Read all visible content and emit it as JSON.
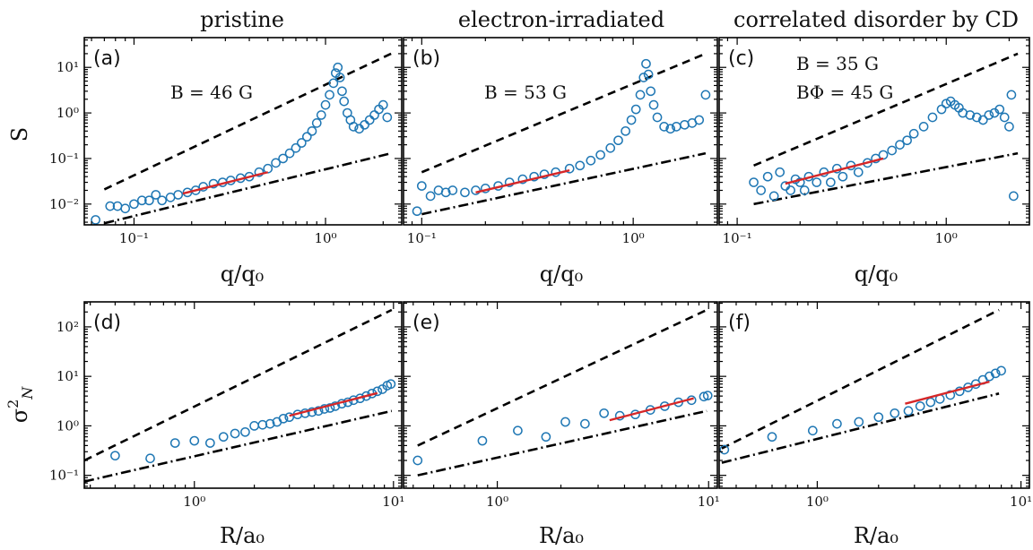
{
  "column_titles": [
    "pristine",
    "electron-irradiated",
    "correlated disorder by CD"
  ],
  "row_axis": {
    "top": {
      "ylabel": "S",
      "xlabel": "q/q₀"
    },
    "bottom": {
      "ylabel": "σ²_N",
      "xlabel": "R/a₀"
    }
  },
  "colors": {
    "data": "#1f77b4",
    "fit": "#d62728",
    "guide": "#000000"
  },
  "chart_data": [
    {
      "panel": "(a)",
      "type": "scatter",
      "annotation": [
        "B = 46 G"
      ],
      "xscale": "log",
      "yscale": "log",
      "xlim": [
        0.055,
        2.5
      ],
      "ylim": [
        0.0035,
        45
      ],
      "xticks": [
        0.1,
        1
      ],
      "xticklabels": [
        "10⁻¹",
        "10⁰"
      ],
      "yticks": [
        0.01,
        0.1,
        1,
        10
      ],
      "yticklabels": [
        "10⁻²",
        "10⁻¹",
        "10⁰",
        "10¹"
      ],
      "x": [
        0.063,
        0.075,
        0.082,
        0.09,
        0.1,
        0.11,
        0.12,
        0.13,
        0.14,
        0.155,
        0.17,
        0.19,
        0.21,
        0.23,
        0.26,
        0.29,
        0.32,
        0.36,
        0.4,
        0.45,
        0.5,
        0.55,
        0.6,
        0.65,
        0.7,
        0.75,
        0.8,
        0.85,
        0.9,
        0.95,
        1.0,
        1.05,
        1.1,
        1.13,
        1.16,
        1.19,
        1.22,
        1.25,
        1.3,
        1.35,
        1.4,
        1.5,
        1.6,
        1.7,
        1.8,
        1.9,
        2.0,
        2.1
      ],
      "y": [
        0.0045,
        0.009,
        0.009,
        0.008,
        0.01,
        0.012,
        0.012,
        0.016,
        0.012,
        0.014,
        0.016,
        0.018,
        0.02,
        0.024,
        0.028,
        0.03,
        0.033,
        0.037,
        0.04,
        0.05,
        0.06,
        0.08,
        0.1,
        0.13,
        0.17,
        0.22,
        0.3,
        0.4,
        0.6,
        0.9,
        1.5,
        2.5,
        4.5,
        7.5,
        10.0,
        6.0,
        3.0,
        1.8,
        1.0,
        0.7,
        0.5,
        0.45,
        0.55,
        0.7,
        0.9,
        1.2,
        1.5,
        0.8
      ],
      "fit": {
        "x": [
          0.18,
          0.5
        ],
        "y": [
          0.017,
          0.05
        ]
      },
      "guides": [
        {
          "style": "dashed",
          "x": [
            0.07,
            2.2
          ],
          "y": [
            0.021,
            20
          ]
        },
        {
          "style": "dashdot",
          "x": [
            0.07,
            2.2
          ],
          "y": [
            0.0038,
            0.13
          ]
        }
      ]
    },
    {
      "panel": "(b)",
      "type": "scatter",
      "annotation": [
        "B = 53 G"
      ],
      "xscale": "log",
      "yscale": "log",
      "xlim": [
        0.082,
        2.5
      ],
      "ylim": [
        0.0035,
        45
      ],
      "xticks": [
        0.1,
        1
      ],
      "xticklabels": [
        "10⁻¹",
        "10⁰"
      ],
      "x": [
        0.095,
        0.1,
        0.11,
        0.12,
        0.13,
        0.14,
        0.16,
        0.18,
        0.2,
        0.23,
        0.26,
        0.3,
        0.34,
        0.38,
        0.43,
        0.5,
        0.56,
        0.63,
        0.7,
        0.78,
        0.85,
        0.92,
        0.98,
        1.03,
        1.08,
        1.12,
        1.15,
        1.18,
        1.21,
        1.25,
        1.3,
        1.4,
        1.5,
        1.6,
        1.75,
        1.9,
        2.05,
        2.2
      ],
      "y": [
        0.007,
        0.025,
        0.015,
        0.02,
        0.018,
        0.02,
        0.018,
        0.02,
        0.022,
        0.025,
        0.03,
        0.035,
        0.04,
        0.045,
        0.05,
        0.06,
        0.07,
        0.09,
        0.12,
        0.17,
        0.25,
        0.4,
        0.7,
        1.2,
        2.5,
        6.0,
        12.0,
        7.0,
        3.0,
        1.5,
        0.8,
        0.5,
        0.45,
        0.5,
        0.55,
        0.6,
        0.7,
        2.5
      ],
      "fit": {
        "x": [
          0.18,
          0.5
        ],
        "y": [
          0.018,
          0.055
        ]
      },
      "guides": [
        {
          "style": "dashed",
          "x": [
            0.1,
            2.2
          ],
          "y": [
            0.05,
            20
          ]
        },
        {
          "style": "dashdot",
          "x": [
            0.1,
            2.2
          ],
          "y": [
            0.006,
            0.13
          ]
        }
      ]
    },
    {
      "panel": "(c)",
      "type": "scatter",
      "annotation": [
        "B = 35 G",
        "BΦ = 45 G"
      ],
      "xscale": "log",
      "yscale": "log",
      "xlim": [
        0.082,
        2.5
      ],
      "ylim": [
        0.0035,
        45
      ],
      "xticks": [
        0.1,
        1
      ],
      "xticklabels": [
        "10⁻¹",
        "10⁰"
      ],
      "x": [
        0.12,
        0.13,
        0.14,
        0.15,
        0.16,
        0.17,
        0.18,
        0.19,
        0.2,
        0.21,
        0.22,
        0.24,
        0.26,
        0.28,
        0.3,
        0.32,
        0.35,
        0.38,
        0.42,
        0.46,
        0.5,
        0.55,
        0.6,
        0.65,
        0.7,
        0.78,
        0.86,
        0.95,
        1.0,
        1.05,
        1.1,
        1.15,
        1.2,
        1.3,
        1.4,
        1.5,
        1.6,
        1.7,
        1.8,
        1.9,
        2.0,
        2.05,
        2.1
      ],
      "y": [
        0.03,
        0.02,
        0.04,
        0.015,
        0.05,
        0.025,
        0.02,
        0.035,
        0.03,
        0.02,
        0.04,
        0.03,
        0.05,
        0.03,
        0.06,
        0.04,
        0.07,
        0.05,
        0.08,
        0.1,
        0.12,
        0.15,
        0.2,
        0.25,
        0.35,
        0.5,
        0.8,
        1.2,
        1.6,
        1.8,
        1.5,
        1.3,
        1.0,
        0.9,
        0.8,
        0.7,
        0.9,
        1.0,
        1.2,
        0.8,
        0.5,
        2.5,
        0.015
      ],
      "fit": {
        "x": [
          0.17,
          0.5
        ],
        "y": [
          0.028,
          0.1
        ]
      },
      "guides": [
        {
          "style": "dashed",
          "x": [
            0.12,
            2.2
          ],
          "y": [
            0.07,
            20
          ]
        },
        {
          "style": "dashdot",
          "x": [
            0.12,
            2.2
          ],
          "y": [
            0.01,
            0.13
          ]
        }
      ]
    },
    {
      "panel": "(d)",
      "type": "scatter",
      "xscale": "log",
      "yscale": "log",
      "xlim": [
        0.28,
        11
      ],
      "ylim": [
        0.055,
        320
      ],
      "xticks": [
        1,
        10
      ],
      "xticklabels": [
        "10⁰",
        "10¹"
      ],
      "yticks": [
        0.1,
        1,
        10,
        100
      ],
      "yticklabels": [
        "10⁻¹",
        "10⁰",
        "10¹",
        "10²"
      ],
      "x": [
        0.4,
        0.6,
        0.8,
        1.0,
        1.2,
        1.4,
        1.6,
        1.8,
        2.0,
        2.2,
        2.4,
        2.6,
        2.8,
        3.0,
        3.3,
        3.6,
        3.9,
        4.2,
        4.5,
        4.8,
        5.1,
        5.5,
        5.9,
        6.3,
        6.8,
        7.3,
        7.8,
        8.3,
        8.8,
        9.3,
        9.7
      ],
      "y": [
        0.25,
        0.22,
        0.45,
        0.5,
        0.45,
        0.6,
        0.7,
        0.75,
        1.0,
        1.05,
        1.1,
        1.2,
        1.4,
        1.5,
        1.7,
        1.8,
        1.9,
        2.0,
        2.2,
        2.3,
        2.5,
        2.8,
        3.0,
        3.3,
        3.6,
        4.0,
        4.5,
        5.0,
        5.5,
        6.5,
        7.0
      ],
      "fit": {
        "x": [
          3.0,
          8.3
        ],
        "y": [
          1.6,
          4.6
        ]
      },
      "guides": [
        {
          "style": "dashed",
          "x": [
            0.28,
            9.8
          ],
          "y": [
            0.2,
            220
          ]
        },
        {
          "style": "dashdot",
          "x": [
            0.28,
            9.8
          ],
          "y": [
            0.075,
            2.0
          ]
        }
      ]
    },
    {
      "panel": "(e)",
      "type": "scatter",
      "xscale": "log",
      "yscale": "log",
      "xlim": [
        0.36,
        11
      ],
      "ylim": [
        0.055,
        320
      ],
      "xticks": [
        1,
        10
      ],
      "xticklabels": [
        "10⁰",
        "10¹"
      ],
      "x": [
        0.42,
        0.85,
        1.25,
        1.7,
        2.1,
        2.6,
        3.2,
        3.8,
        4.5,
        5.3,
        6.2,
        7.2,
        8.3,
        9.5,
        9.9
      ],
      "y": [
        0.2,
        0.5,
        0.8,
        0.6,
        1.2,
        1.1,
        1.8,
        1.6,
        1.7,
        2.1,
        2.5,
        3.0,
        3.3,
        3.9,
        4.1
      ],
      "fit": {
        "x": [
          3.4,
          8.5
        ],
        "y": [
          1.3,
          3.6
        ]
      },
      "guides": [
        {
          "style": "dashed",
          "x": [
            0.42,
            9.8
          ],
          "y": [
            0.4,
            220
          ]
        },
        {
          "style": "dashdot",
          "x": [
            0.42,
            9.8
          ],
          "y": [
            0.1,
            2.0
          ]
        }
      ]
    },
    {
      "panel": "(f)",
      "type": "scatter",
      "xscale": "log",
      "yscale": "log",
      "xlim": [
        0.33,
        11
      ],
      "ylim": [
        0.055,
        320
      ],
      "xticks": [
        1,
        10
      ],
      "xticklabels": [
        "10⁰",
        "10¹"
      ],
      "x": [
        0.35,
        0.6,
        0.95,
        1.25,
        1.6,
        2.0,
        2.4,
        2.8,
        3.2,
        3.6,
        4.0,
        4.5,
        5.0,
        5.5,
        6.0,
        6.5,
        7.0,
        7.5,
        8.0
      ],
      "y": [
        0.33,
        0.6,
        0.8,
        1.1,
        1.2,
        1.5,
        1.8,
        2.0,
        2.5,
        3.0,
        3.5,
        4.2,
        5.0,
        6.0,
        7.0,
        8.5,
        10.0,
        11.5,
        13.0
      ],
      "fit": {
        "x": [
          2.7,
          7.0
        ],
        "y": [
          2.8,
          7.8
        ]
      },
      "guides": [
        {
          "style": "dashed",
          "x": [
            0.34,
            7.8
          ],
          "y": [
            0.35,
            220
          ]
        },
        {
          "style": "dashdot",
          "x": [
            0.34,
            7.8
          ],
          "y": [
            0.18,
            4.5
          ]
        }
      ]
    }
  ]
}
